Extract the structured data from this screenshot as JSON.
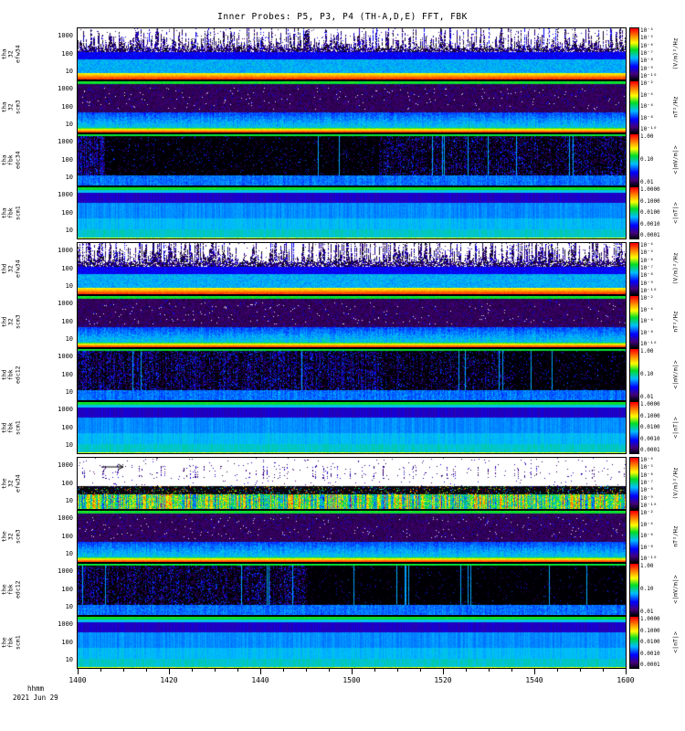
{
  "title": "Inner Probes: P5, P3, P4 (TH-A,D,E) FFT, FBK",
  "chart_data": {
    "type": "heatmap",
    "title": "Inner Probes: P5, P3, P4 (TH-A,D,E) FFT, FBK",
    "x_axis": {
      "label": "hhmm",
      "date": "2021 Jun 29",
      "ticks": [
        "1400",
        "1420",
        "1440",
        "1500",
        "1520",
        "1540",
        "1600"
      ],
      "range": "14:00 to 16:00 UT"
    },
    "y_axis": {
      "scale": "log",
      "ticks": [
        "1000",
        "100",
        "10"
      ],
      "units": "Hz"
    },
    "legend_position": "right-colorbars",
    "grid": false,
    "panels": [
      {
        "id": "tha-fft-efw34",
        "label_lines": [
          "tha",
          "32",
          "efw34"
        ],
        "type": "efw_fft",
        "seed": 101,
        "spike_density": 0.55,
        "pattern": "bursty broadband E spectra: dense dark spikes above 100 Hz on white, blue-cyan mid band, intense red low-frequency band",
        "colorbar": {
          "ticks": [
            "10⁻⁴",
            "10⁻⁵",
            "10⁻⁶",
            "10⁻⁷",
            "10⁻⁸",
            "10⁻⁹",
            "10⁻¹⁰"
          ],
          "unit": "(V/m)²/Hz"
        }
      },
      {
        "id": "tha-fft-scm3",
        "label_lines": [
          "tha",
          "32",
          "scm3"
        ],
        "type": "scm_fft",
        "seed": 102,
        "pattern": "dark purple background with white speckle, cyan low band, red-yellow intense bottom edge, green top line",
        "colorbar": {
          "ticks": [
            "10⁻²",
            "10⁻⁴",
            "10⁻⁶",
            "10⁻⁸",
            "10⁻¹⁰"
          ],
          "unit": "nT²/Hz"
        }
      },
      {
        "id": "tha-fbk-edc34",
        "label_lines": [
          "tha",
          "fbk",
          "edc34"
        ],
        "type": "fbk_dc",
        "seed": 103,
        "regions": [
          [
            0,
            0.05,
            0.85
          ],
          [
            0.05,
            0.55,
            0.1
          ],
          [
            0.55,
            1,
            0.45
          ]
        ],
        "pattern": "black with blue vertical streaks, cyan columns at left edge and right half, cyan bottom rows",
        "colorbar": {
          "ticks": [
            "1.00",
            "0.10",
            "0.01"
          ],
          "unit": "<|mV/m|>"
        }
      },
      {
        "id": "tha-fbk-scm1",
        "label_lines": [
          "tha",
          "fbk",
          "scm1"
        ],
        "type": "fbk_scm",
        "seed": 104,
        "pattern": "smooth horizontal bands: green top line, dark blue upper band, cyan body, yellow bottom line",
        "colorbar": {
          "ticks": [
            "1.0000",
            "0.1000",
            "0.0100",
            "0.0010",
            "0.0001"
          ],
          "unit": "<|nT|>"
        }
      },
      {
        "id": "thd-fft-efw34",
        "label_lines": [
          "thd",
          "32",
          "efw34"
        ],
        "type": "efw_fft",
        "seed": 105,
        "spike_density": 0.75,
        "pattern": "denser bursty spikes reaching panel top, blue-cyan mid band, red low-frequency band",
        "colorbar": {
          "ticks": [
            "10⁻⁴",
            "10⁻⁵",
            "10⁻⁶",
            "10⁻⁷",
            "10⁻⁸",
            "10⁻⁹",
            "10⁻¹⁰"
          ],
          "unit": "(V/m)²/Hz"
        }
      },
      {
        "id": "thd-fft-scm3",
        "label_lines": [
          "thd",
          "32",
          "scm3"
        ],
        "type": "scm_fft",
        "seed": 106,
        "pattern": "dark purple with white speckle band, cyan lower band, red-yellow bottom edge",
        "colorbar": {
          "ticks": [
            "10⁻²",
            "10⁻⁴",
            "10⁻⁶",
            "10⁻⁸",
            "10⁻¹⁰"
          ],
          "unit": "nT²/Hz"
        }
      },
      {
        "id": "thd-fbk-edc12",
        "label_lines": [
          "thd",
          "fbk",
          "edc12"
        ],
        "type": "fbk_dc",
        "seed": 107,
        "regions": [
          [
            0,
            0.55,
            0.6
          ],
          [
            0.55,
            0.78,
            0.35
          ],
          [
            0.78,
            1,
            0.12
          ]
        ],
        "pattern": "dense dark blue/purple speckle on left two-thirds, blacker right quarter, cyan bottom rows, green-yellow bursts",
        "colorbar": {
          "ticks": [
            "1.00",
            "0.10",
            "0.01"
          ],
          "unit": "<|mV/m|>"
        }
      },
      {
        "id": "thd-fbk-scm1",
        "label_lines": [
          "thd",
          "fbk",
          "scm1"
        ],
        "type": "fbk_scm",
        "seed": 108,
        "pattern": "smooth horizontal bands: green top line, dark blue band, cyan body, yellow bottom line",
        "colorbar": {
          "ticks": [
            "1.0000",
            "0.1000",
            "0.0100",
            "0.0010",
            "0.0001"
          ],
          "unit": "<|nT|>"
        }
      },
      {
        "id": "the-fft-efw34",
        "label_lines": [
          "the",
          "32",
          "efw34"
        ],
        "type": "efw_sparse",
        "seed": 109,
        "arrow": true,
        "pattern": "mostly white with sparse dark dots and arrow marker, black mid band with colored speckle, vivid multicolor low-frequency band",
        "colorbar": {
          "ticks": [
            "10⁻⁴",
            "10⁻⁵",
            "10⁻⁶",
            "10⁻⁷",
            "10⁻⁸",
            "10⁻⁹",
            "10⁻¹⁰"
          ],
          "unit": "(V/m)²/Hz"
        }
      },
      {
        "id": "the-fft-scm3",
        "label_lines": [
          "the",
          "32",
          "scm3"
        ],
        "type": "scm_fft",
        "seed": 110,
        "pattern": "dark purple with white speckle band, cyan lower band, green-yellow-red bottom edge",
        "colorbar": {
          "ticks": [
            "10⁻²",
            "10⁻⁴",
            "10⁻⁶",
            "10⁻⁸",
            "10⁻¹⁰"
          ],
          "unit": "nT²/Hz"
        }
      },
      {
        "id": "the-fbk-edc12",
        "label_lines": [
          "the",
          "fbk",
          "edc12"
        ],
        "type": "fbk_dc",
        "seed": 111,
        "regions": [
          [
            0,
            0.42,
            0.5
          ],
          [
            0.42,
            1,
            0.04
          ]
        ],
        "pattern": "blue speckle over left 40%, black right portion, cyan bottom rows throughout",
        "colorbar": {
          "ticks": [
            "1.00",
            "0.10",
            "0.01"
          ],
          "unit": "<|mV/m|>"
        }
      },
      {
        "id": "the-fbk-scm1",
        "label_lines": [
          "the",
          "fbk",
          "scm1"
        ],
        "type": "fbk_scm",
        "seed": 112,
        "pattern": "smooth horizontal bands: green top line, dark blue band, cyan body, yellow-green bottom",
        "colorbar": {
          "ticks": [
            "1.0000",
            "0.1000",
            "0.0100",
            "0.0010",
            "0.0001"
          ],
          "unit": "<|nT|>"
        }
      }
    ]
  }
}
